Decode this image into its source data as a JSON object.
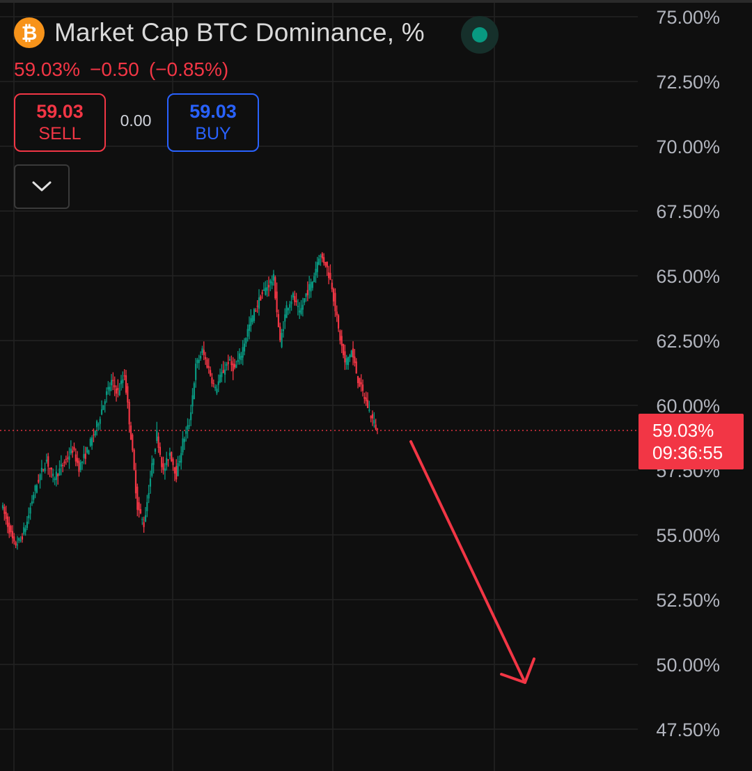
{
  "header": {
    "icon": "bitcoin-icon",
    "icon_glyph": "₿",
    "title": "Market Cap BTC Dominance, %",
    "status": "market-open-dot",
    "last_value": "59.03%",
    "change_abs": "−0.50",
    "change_pct": "(−0.85%)"
  },
  "trade": {
    "sell_price": "59.03",
    "sell_label": "SELL",
    "spread": "0.00",
    "buy_price": "59.03",
    "buy_label": "BUY"
  },
  "collapse_icon": "chevron-down-icon",
  "price_tag": {
    "price": "59.03%",
    "countdown": "09:36:55"
  },
  "colors": {
    "background": "#0f0f0f",
    "up": "#089981",
    "down": "#f23645",
    "grid": "#232323",
    "axis_text": "#b2b5be",
    "arrow": "#f23645"
  },
  "chart_data": {
    "type": "line",
    "title": "Market Cap BTC Dominance, %",
    "ylim": [
      47.5,
      75.0
    ],
    "y_ticks": [
      "75.00%",
      "72.50%",
      "70.00%",
      "67.50%",
      "65.00%",
      "62.50%",
      "60.00%",
      "57.50%",
      "55.00%",
      "52.50%",
      "50.00%",
      "47.50%"
    ],
    "y_tick_values": [
      75.0,
      72.5,
      70.0,
      67.5,
      65.0,
      62.5,
      60.0,
      57.5,
      55.0,
      52.5,
      50.0,
      47.5
    ],
    "axis_position": "right",
    "grid": true,
    "last_price": 59.03,
    "series": [
      {
        "values": [
          56.2,
          55.4,
          54.6,
          54.8,
          55.5,
          56.6,
          57.3,
          57.9,
          57.2,
          57.5,
          57.9,
          58.3,
          57.6,
          58.1,
          58.7,
          59.4,
          60.3,
          60.9,
          60.5,
          61.2,
          58.8,
          56.1,
          55.4,
          57.2,
          58.9,
          57.4,
          58.2,
          57.3,
          58.6,
          59.3,
          61.5,
          62.1,
          61.4,
          60.6,
          61.2,
          61.7,
          61.4,
          62.0,
          62.9,
          63.6,
          64.2,
          64.6,
          64.9,
          62.4,
          63.8,
          64.2,
          63.5,
          64.3,
          64.8,
          65.8,
          65.5,
          64.6,
          62.9,
          61.6,
          62.1,
          61.0,
          60.3,
          59.6,
          59.03
        ]
      }
    ],
    "annotation": "arrow pointing down"
  }
}
